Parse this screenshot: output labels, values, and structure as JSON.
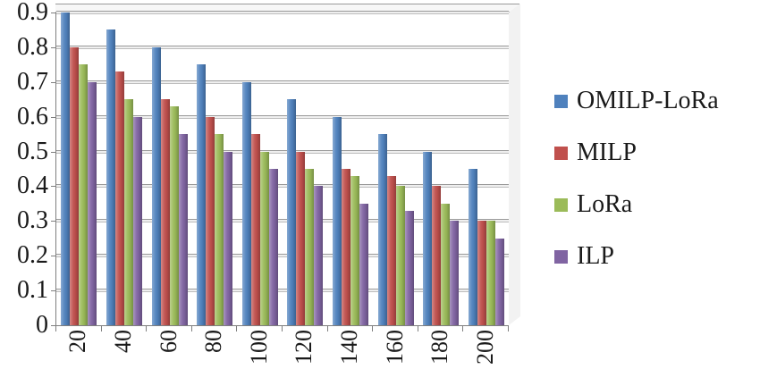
{
  "chart_data": {
    "type": "bar",
    "title": "",
    "xlabel": "",
    "ylabel": "",
    "categories": [
      "20",
      "40",
      "60",
      "80",
      "100",
      "120",
      "140",
      "160",
      "180",
      "200"
    ],
    "series": [
      {
        "name": "OMILP-LoRa",
        "color": "#4f81bd",
        "values": [
          0.9,
          0.85,
          0.8,
          0.75,
          0.7,
          0.65,
          0.6,
          0.55,
          0.5,
          0.45
        ]
      },
      {
        "name": "MILP",
        "color": "#c0504d",
        "values": [
          0.8,
          0.73,
          0.65,
          0.6,
          0.55,
          0.5,
          0.45,
          0.43,
          0.4,
          0.3
        ]
      },
      {
        "name": "LoRa",
        "color": "#9bbb59",
        "values": [
          0.75,
          0.65,
          0.63,
          0.55,
          0.5,
          0.45,
          0.43,
          0.4,
          0.35,
          0.3
        ]
      },
      {
        "name": "ILP",
        "color": "#8064a2",
        "values": [
          0.7,
          0.6,
          0.55,
          0.5,
          0.45,
          0.4,
          0.35,
          0.33,
          0.3,
          0.25
        ]
      }
    ],
    "ylim": [
      0,
      0.9
    ],
    "ytick_step": 0.1,
    "y_tick_labels": [
      "0",
      "0.1",
      "0.2",
      "0.3",
      "0.4",
      "0.5",
      "0.6",
      "0.7",
      "0.8",
      "0.9"
    ],
    "grid": true,
    "legend_position": "right"
  }
}
